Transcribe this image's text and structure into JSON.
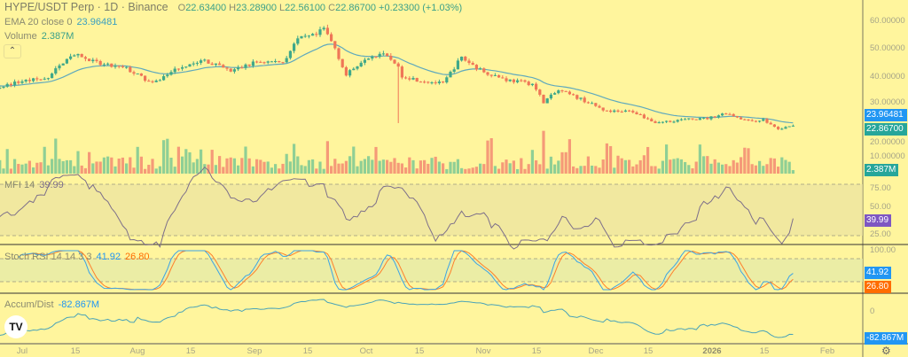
{
  "header": {
    "symbol": "HYPE/USDT Perp · 1D · Binance",
    "ohlc": {
      "o_label": "O",
      "o": "22.63400",
      "h_label": "H",
      "h": "23.28900",
      "l_label": "L",
      "l": "22.56100",
      "c_label": "C",
      "c": "22.86700",
      "change": "+0.23300 (+1.03%)"
    },
    "ema_label": "EMA 20 close 0",
    "ema_value": "23.96481",
    "volume_label": "Volume",
    "volume_value": "2.387M",
    "collapse_icon": "chevron-up-icon"
  },
  "indicators": {
    "mfi": {
      "label": "MFI 14",
      "value": "39.99",
      "color": "#7e57c2"
    },
    "stoch": {
      "label": "Stoch RSI 14 14 3 3",
      "k": "41.92",
      "d": "26.80",
      "k_color": "#2196f3",
      "d_color": "#ff6d00"
    },
    "ad": {
      "label": "Accum/Dist",
      "value": "-82.867M",
      "color": "#2196f3"
    }
  },
  "price_axis": {
    "ticks": [
      "60.00000",
      "50.00000",
      "40.00000",
      "30.00000",
      "20.00000",
      "10.00000"
    ],
    "ema_tag": "23.96481",
    "close_tag": "22.86700",
    "volume_tag": "2.387M",
    "mfi_ticks": [
      "75.00",
      "50.00",
      "25.00"
    ],
    "mfi_tag": "39.99",
    "stoch_ticks": [
      "100.00"
    ],
    "stoch_k_tag": "41.92",
    "stoch_d_tag": "26.80",
    "ad_ticks": [
      "0"
    ],
    "ad_tag": "-82.867M"
  },
  "time_axis": [
    "Jul",
    "15",
    "Aug",
    "15",
    "Sep",
    "15",
    "Oct",
    "15",
    "Nov",
    "15",
    "Dec",
    "15",
    "2026",
    "15",
    "Feb"
  ],
  "colors": {
    "background": "#fff59d",
    "up": "#3fa88a",
    "down": "#ef7657",
    "ema": "#5fa9bd",
    "ema_tag": "#2196f3",
    "close_tag": "#26a69a"
  },
  "chart_data": {
    "type": "candlestick",
    "interval": "1D",
    "price_range": [
      0,
      65
    ],
    "close_anchors": [
      [
        "2025-06-01",
        38
      ],
      [
        "2025-06-25",
        37
      ],
      [
        "2025-07-01",
        39
      ],
      [
        "2025-07-08",
        40
      ],
      [
        "2025-07-13",
        47.5
      ],
      [
        "2025-07-15",
        48.5
      ],
      [
        "2025-07-22",
        45
      ],
      [
        "2025-07-29",
        43.5
      ],
      [
        "2025-08-05",
        38
      ],
      [
        "2025-08-12",
        44
      ],
      [
        "2025-08-19",
        46.5
      ],
      [
        "2025-08-26",
        42.5
      ],
      [
        "2025-09-02",
        46
      ],
      [
        "2025-09-09",
        46
      ],
      [
        "2025-09-13",
        54
      ],
      [
        "2025-09-18",
        55.5
      ],
      [
        "2025-09-20",
        58
      ],
      [
        "2025-09-23",
        51
      ],
      [
        "2025-09-26",
        41
      ],
      [
        "2025-10-01",
        47.5
      ],
      [
        "2025-10-05",
        49
      ],
      [
        "2025-10-09",
        46
      ],
      [
        "2025-10-11",
        41
      ],
      [
        "2025-10-15",
        39.5
      ],
      [
        "2025-10-22",
        38
      ],
      [
        "2025-10-25",
        44
      ],
      [
        "2025-10-27",
        47.5
      ],
      [
        "2025-11-01",
        43
      ],
      [
        "2025-11-08",
        39.5
      ],
      [
        "2025-11-15",
        38
      ],
      [
        "2025-11-18",
        31.5
      ],
      [
        "2025-11-22",
        35.6
      ],
      [
        "2025-11-28",
        32.5
      ],
      [
        "2025-12-05",
        28
      ],
      [
        "2025-12-12",
        28
      ],
      [
        "2025-12-18",
        24
      ],
      [
        "2025-12-25",
        25
      ],
      [
        "2026-01-01",
        25.5
      ],
      [
        "2026-01-06",
        27.5
      ],
      [
        "2026-01-12",
        24.5
      ],
      [
        "2026-01-16",
        25
      ],
      [
        "2026-01-20",
        21.5
      ],
      [
        "2026-01-24",
        22.867
      ]
    ],
    "last_candle": {
      "open": 22.634,
      "high": 23.289,
      "low": 22.561,
      "close": 22.867,
      "volume_m": 2.387
    },
    "oct_10_wick_low": 23.8,
    "ema20_last": 23.96481,
    "mfi_last": 39.99,
    "stoch_k_last": 41.92,
    "stoch_d_last": 26.8,
    "ad_last_m": -82.867
  }
}
